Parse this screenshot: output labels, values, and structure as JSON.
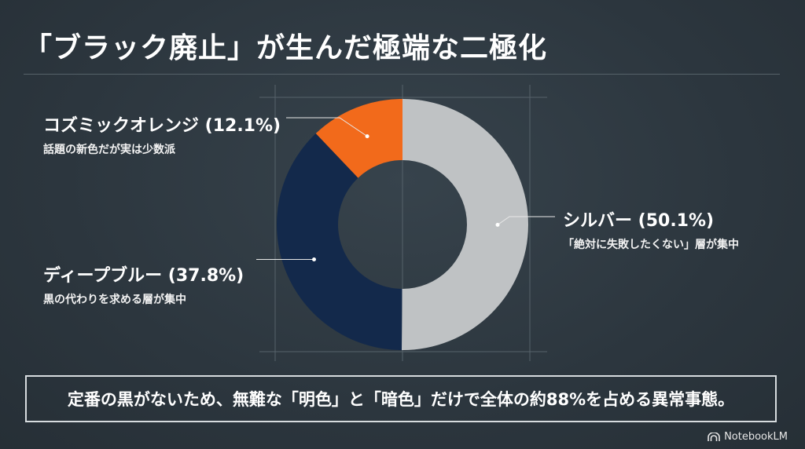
{
  "title": "「ブラック廃止」が生んだ極端な二極化",
  "chart_data": {
    "type": "pie",
    "style": "donut",
    "slices": [
      {
        "name": "シルバー",
        "value": 50.1,
        "display": "シルバー (50.1%)",
        "note": "「絶対に失敗したくない」層が集中",
        "color": "#bfc2c4"
      },
      {
        "name": "ディープブルー",
        "value": 37.8,
        "display": "ディープブルー (37.8%)",
        "note": "黒の代わりを求める層が集中",
        "color": "#13294b"
      },
      {
        "name": "コズミックオレンジ",
        "value": 12.1,
        "display": "コズミックオレンジ (12.1%)",
        "note": "話題の新色だが実は少数派",
        "color": "#f26a1b"
      }
    ]
  },
  "summary": "定番の黒がないため、無難な「明色」と「暗色」だけで全体の約88%を占める異常事態。",
  "brand": "NotebookLM"
}
